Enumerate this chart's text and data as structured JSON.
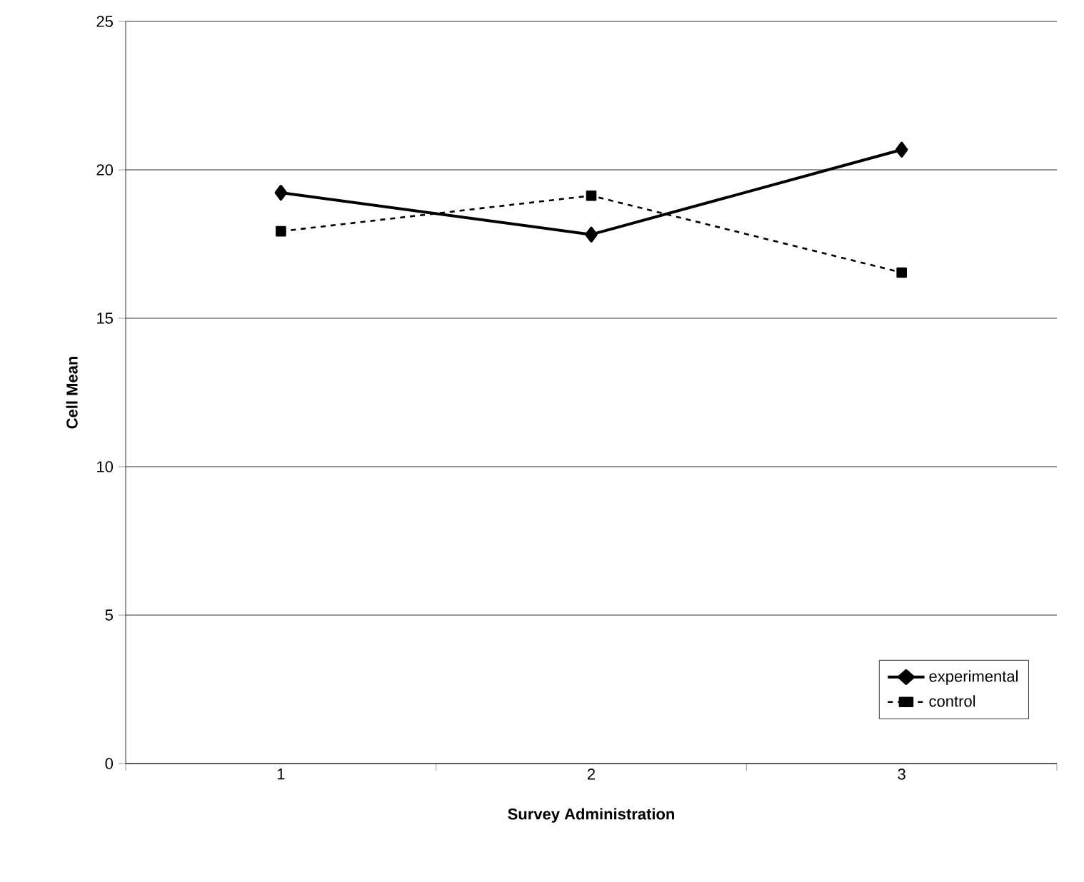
{
  "chart_data": {
    "type": "line",
    "xlabel": "Survey Administration",
    "ylabel": "Cell Mean",
    "categories": [
      "1",
      "2",
      "3"
    ],
    "series": [
      {
        "name": "experimental",
        "color": "#000000",
        "marker": "diamond",
        "line_style": "solid",
        "values": [
          19.23,
          17.82,
          20.68
        ]
      },
      {
        "name": "control",
        "color": "#000000",
        "marker": "square",
        "line_style": "dashed",
        "values": [
          17.93,
          19.13,
          16.54
        ]
      }
    ],
    "ylim": [
      0,
      25
    ],
    "yticks": [
      0,
      5,
      10,
      15,
      20,
      25
    ],
    "grid": "y",
    "legend": "bottom right"
  }
}
